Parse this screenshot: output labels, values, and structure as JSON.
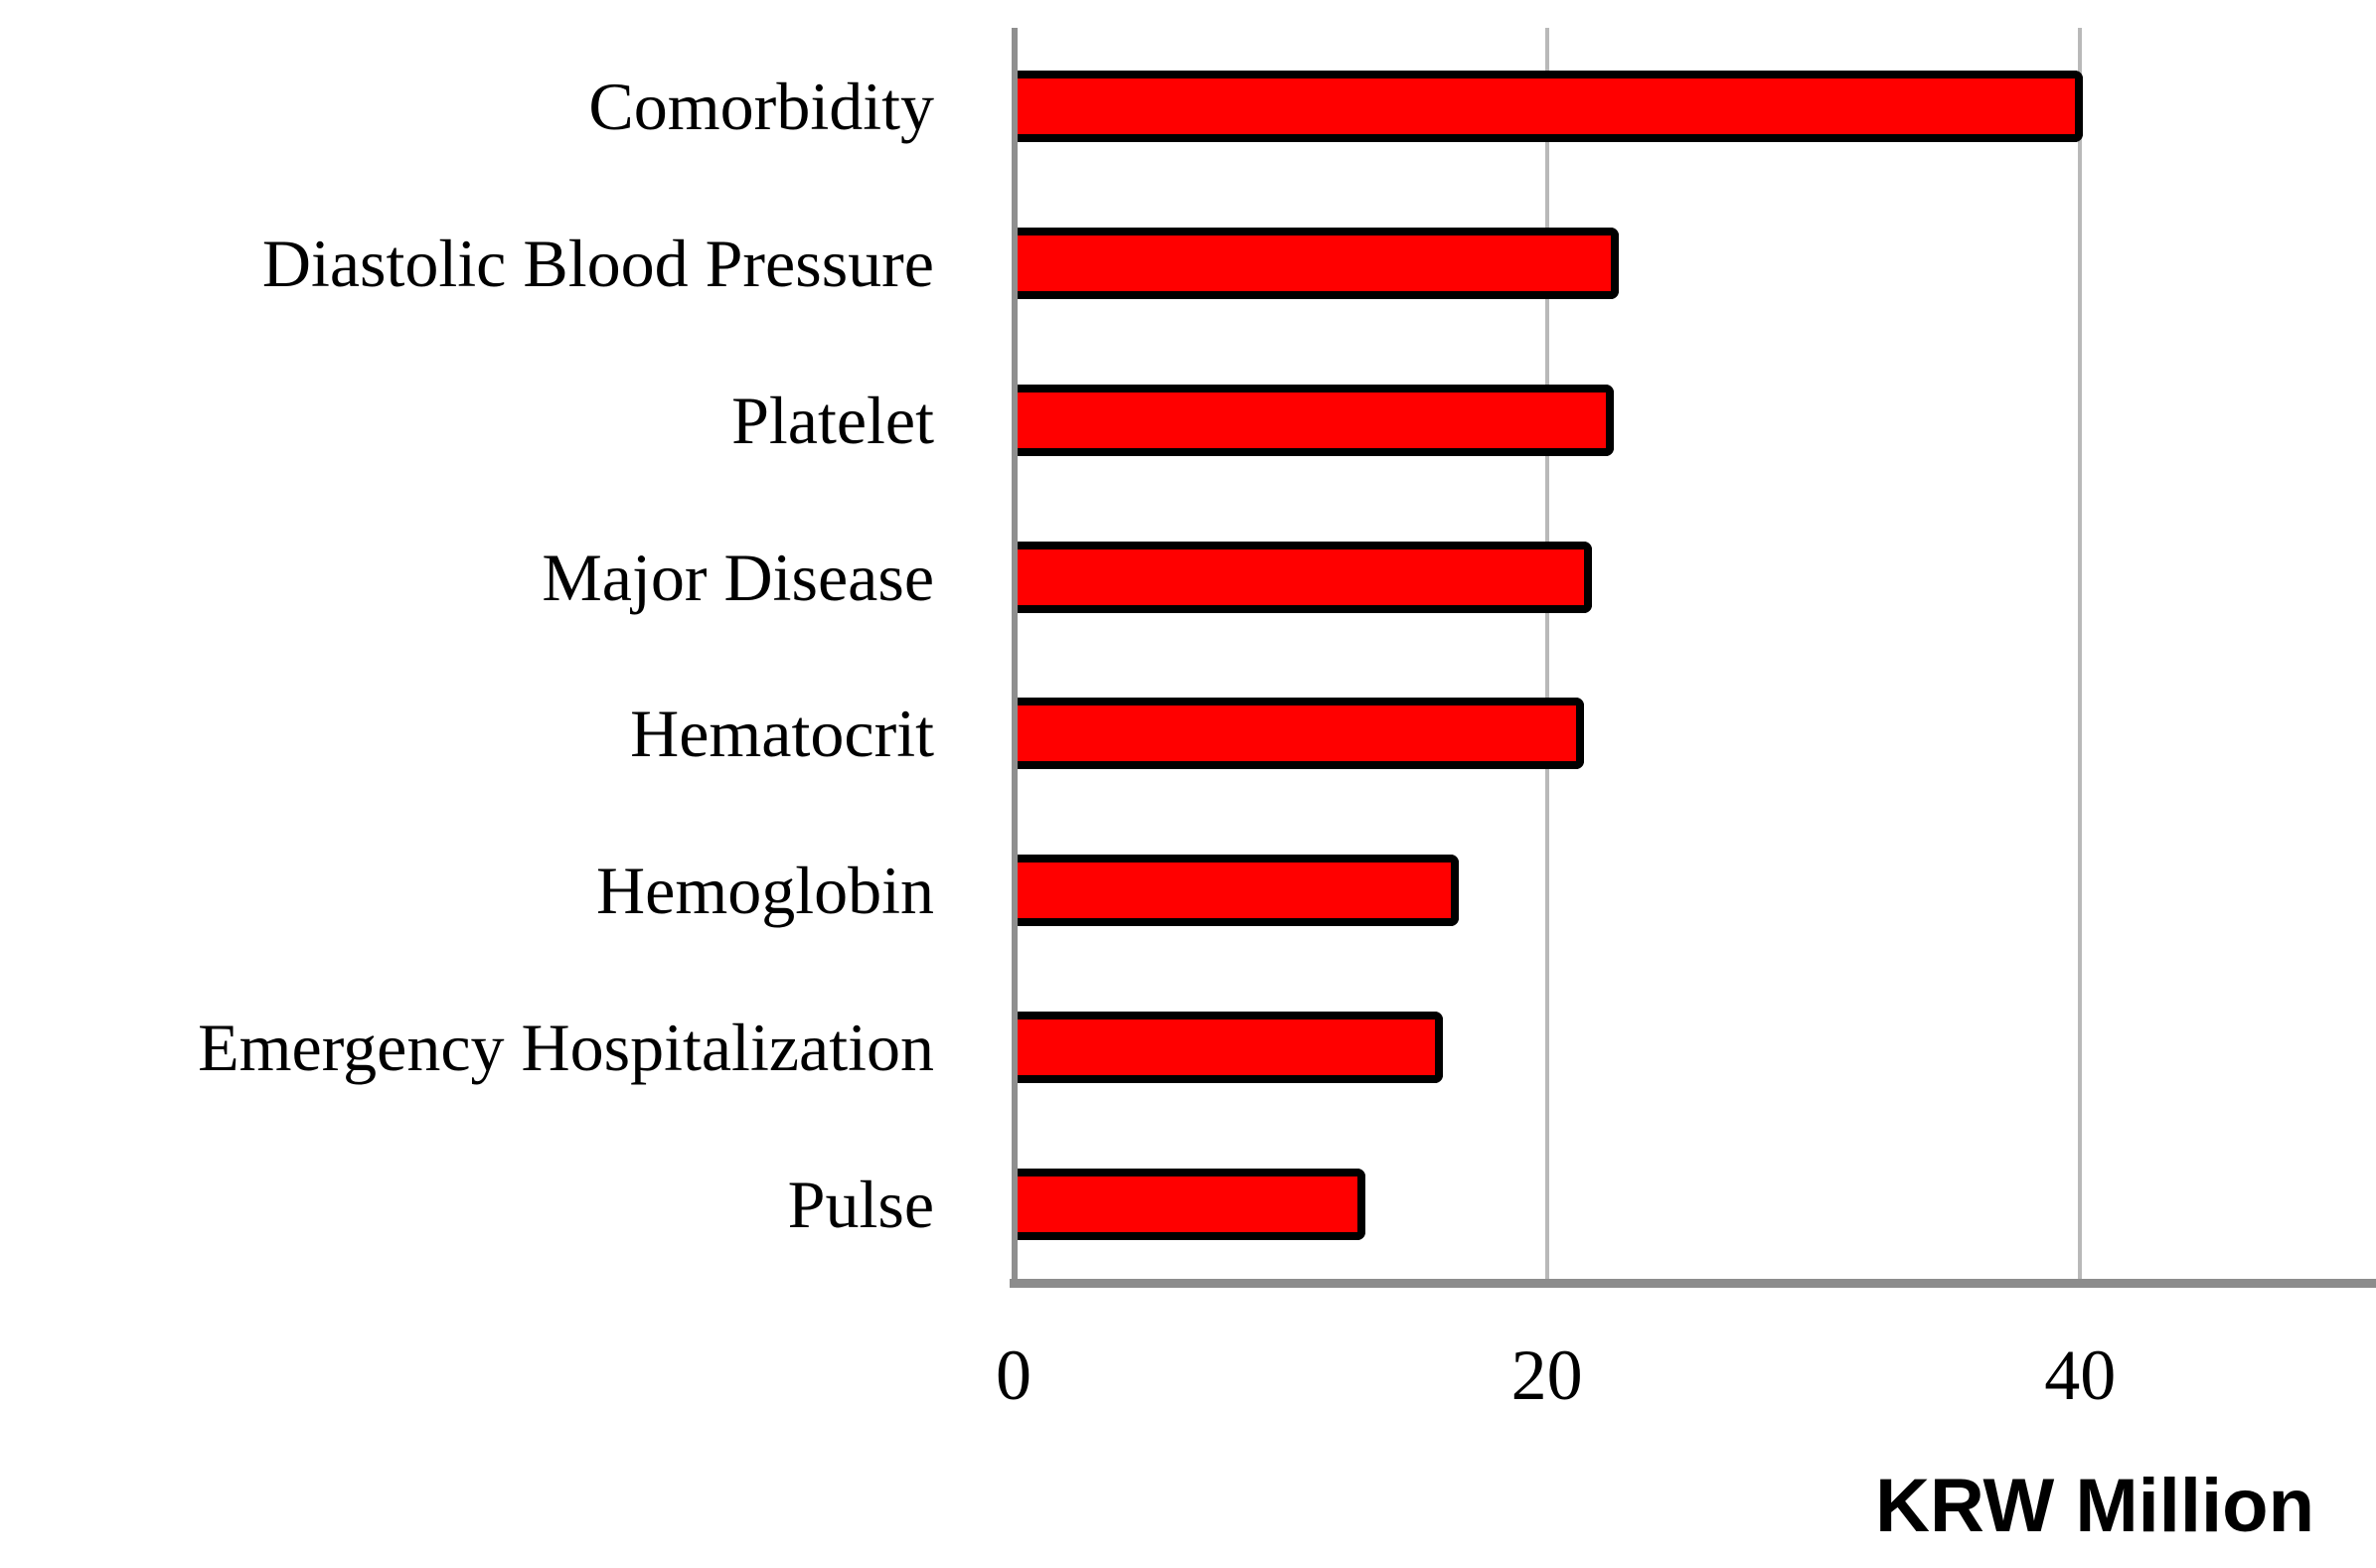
{
  "chart_data": {
    "type": "bar",
    "orientation": "horizontal",
    "categories": [
      "Comorbidity",
      "Diastolic Blood Pressure",
      "Platelet",
      "Major Disease",
      "Hematocrit",
      "Hemoglobin",
      "Emergency Hospitalization",
      "Pulse"
    ],
    "values": [
      40.1,
      22.7,
      22.5,
      21.7,
      21.4,
      16.7,
      16.1,
      13.2
    ],
    "title": "",
    "xlabel": "KRW Million",
    "ylabel": "",
    "xticks": [
      0,
      20,
      40
    ],
    "xtick_labels": [
      "0",
      "20",
      "40"
    ],
    "xlim": [
      0,
      51.1
    ],
    "grid": true,
    "legend": false,
    "colors": {
      "bar_fill": "#ff0000",
      "bar_border": "#000000",
      "gridline": "#b9b9b9",
      "y_axis": "#8f8f8f",
      "x_axis": "#8c8c8c",
      "text": "#000000"
    }
  }
}
